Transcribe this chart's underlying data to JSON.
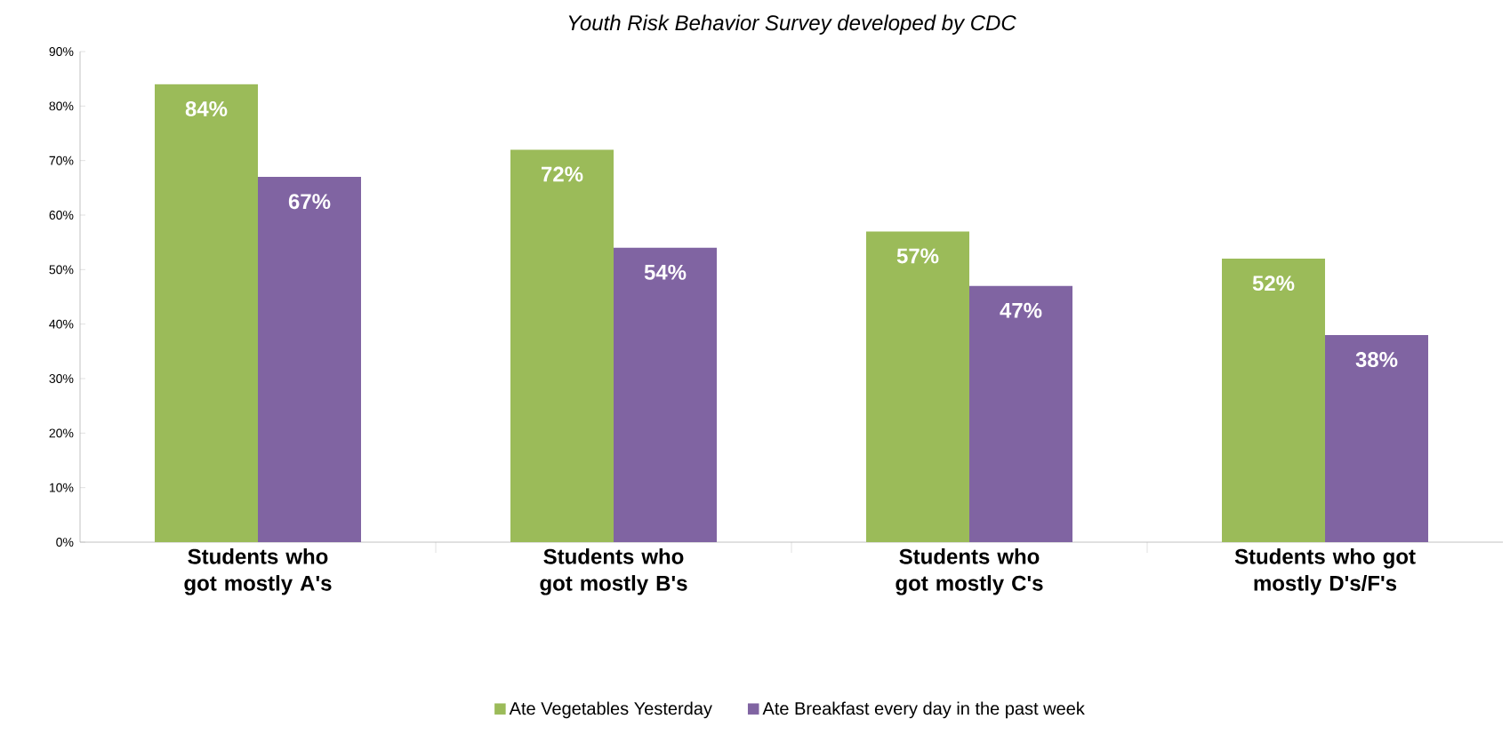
{
  "chart_data": {
    "type": "bar",
    "title": "Youth Risk Behavior Survey developed by CDC",
    "categories": [
      "Students who got mostly A's",
      "Students who got mostly B's",
      "Students who got mostly C's",
      "Students who got mostly D's/F's"
    ],
    "series": [
      {
        "name": "Ate Vegetables Yesterday",
        "color": "#9bbb59",
        "values": [
          84,
          72,
          57,
          52
        ],
        "value_labels": [
          "84%",
          "72%",
          "57%",
          "52%"
        ]
      },
      {
        "name": "Ate Breakfast every day in the past week",
        "color": "#8064a2",
        "values": [
          67,
          54,
          47,
          38
        ],
        "value_labels": [
          "67%",
          "54%",
          "47%",
          "38%"
        ]
      }
    ],
    "ylim": [
      0,
      90
    ],
    "yticks": [
      {
        "value": 0,
        "label": "0%"
      },
      {
        "value": 10,
        "label": "10%"
      },
      {
        "value": 20,
        "label": "20%"
      },
      {
        "value": 30,
        "label": "30%"
      },
      {
        "value": 40,
        "label": "40%"
      },
      {
        "value": 50,
        "label": "50%"
      },
      {
        "value": 60,
        "label": "60%"
      },
      {
        "value": 70,
        "label": "70%"
      },
      {
        "value": 80,
        "label": "80%"
      },
      {
        "value": 90,
        "label": "90%"
      }
    ],
    "grid": false,
    "legend": "bottom"
  }
}
